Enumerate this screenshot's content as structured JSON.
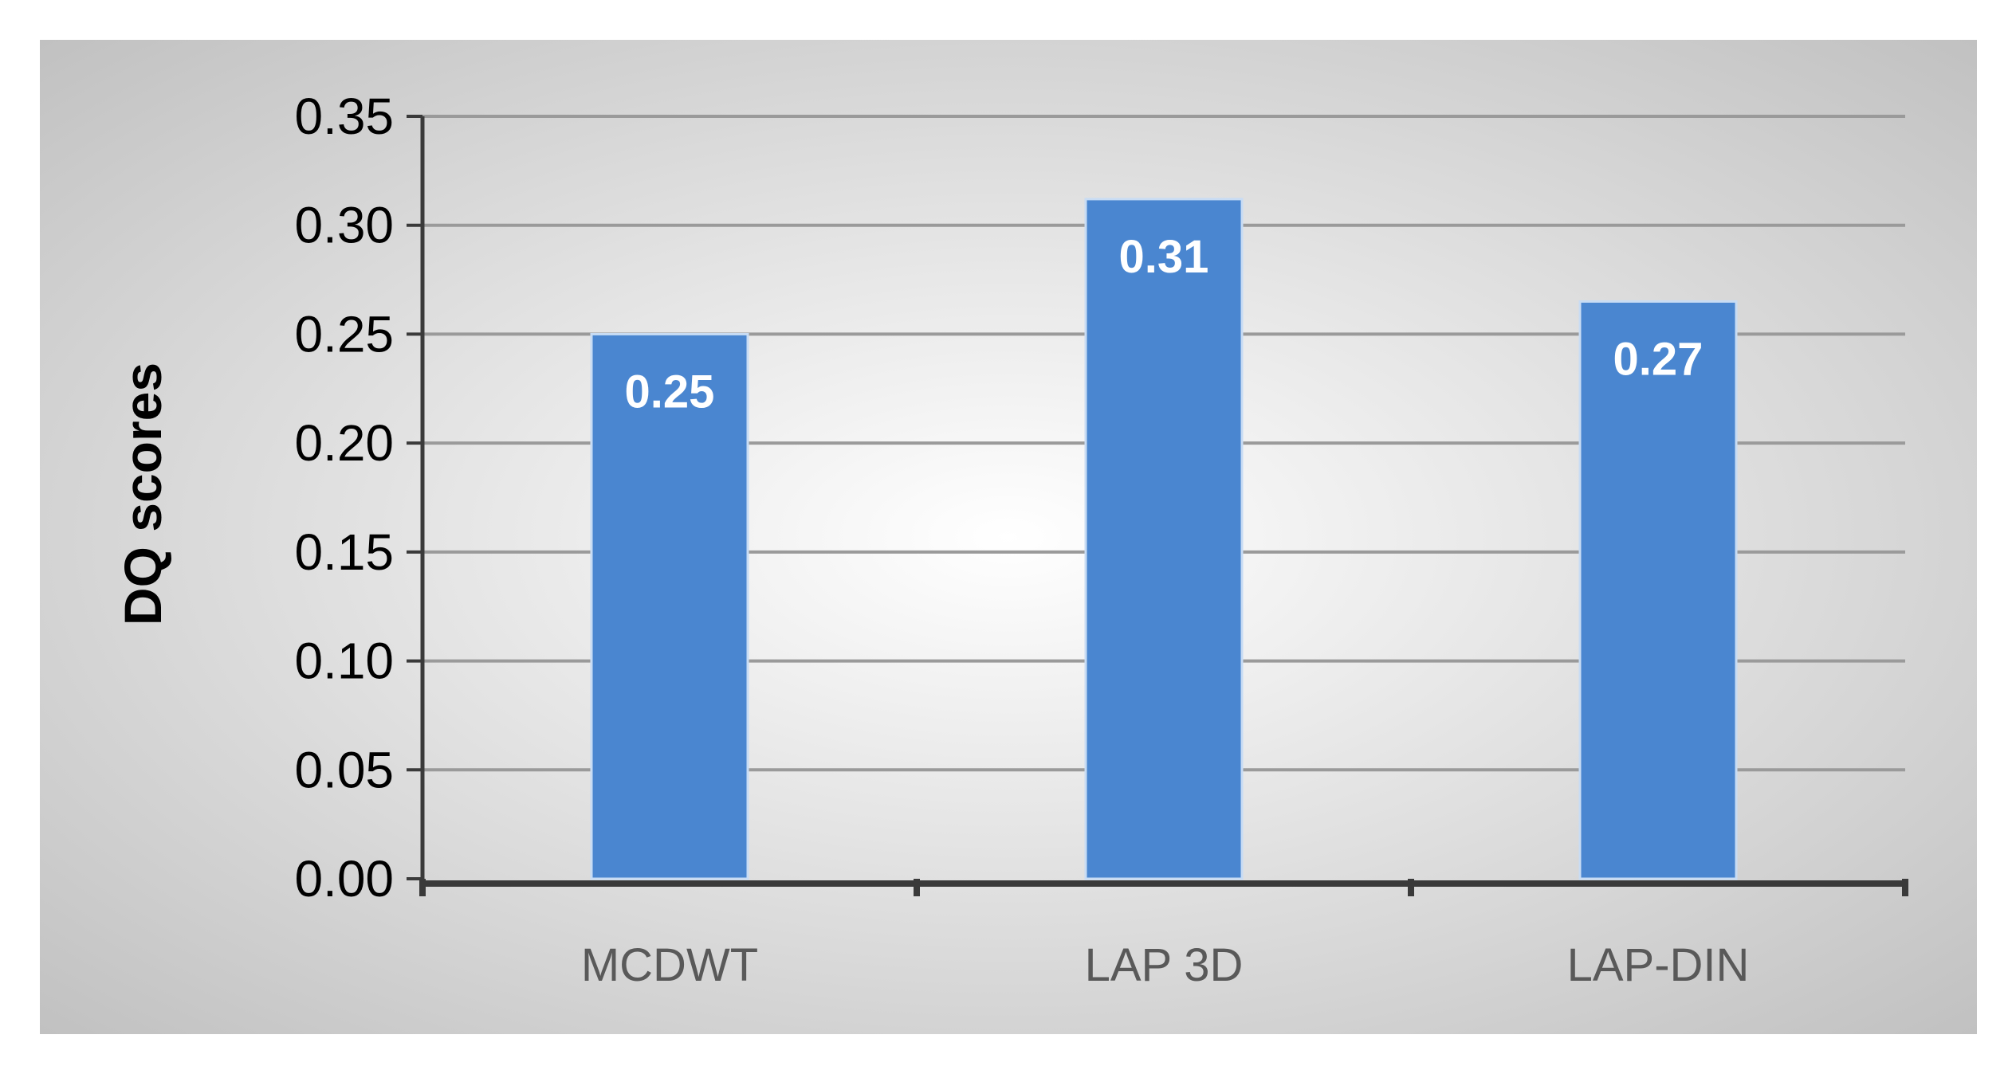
{
  "chart_data": {
    "type": "bar",
    "categories": [
      "MCDWT",
      "LAP 3D",
      "LAP-DIN"
    ],
    "values": [
      0.25,
      0.312,
      0.265
    ],
    "data_labels": [
      "0.25",
      "0.31",
      "0.27"
    ],
    "title": "",
    "xlabel": "",
    "ylabel": "DQ scores",
    "ylim": [
      0,
      0.35
    ],
    "y_ticks": [
      "0.00",
      "0.05",
      "0.10",
      "0.15",
      "0.20",
      "0.25",
      "0.30",
      "0.35"
    ],
    "grid": true,
    "legend": "none",
    "colors": {
      "bar": "#4a86d0",
      "bar_edge": "#c8dcf4",
      "data_label": "#ffffff",
      "axis": "#3a3a3a",
      "gridline": "#9a9a9a",
      "background_center": "#ffffff",
      "background_edge": "#bdbdbd"
    }
  }
}
